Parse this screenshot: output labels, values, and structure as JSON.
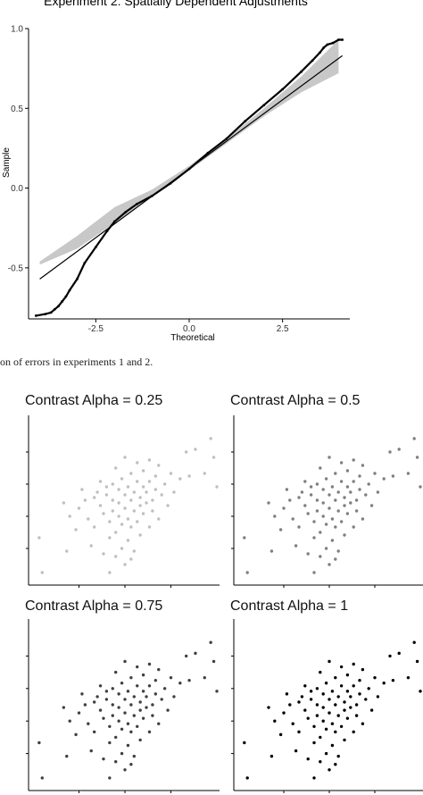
{
  "caption": "on of errors in experiments 1 and 2.",
  "chart_data": [
    {
      "type": "scatter",
      "title": "Experiment 2: Spatially Dependent Adjustments",
      "xlabel": "Theoretical",
      "ylabel": "Sample",
      "xlim": [
        -4.3,
        4.3
      ],
      "ylim": [
        -0.82,
        1.0
      ],
      "xticks": [
        -2.5,
        0.0,
        2.5
      ],
      "xtick_labels": [
        "-2.5",
        "0.0",
        "2.5"
      ],
      "yticks": [
        -0.5,
        0.0,
        0.5,
        1.0
      ],
      "ytick_labels": [
        "-0.5",
        "0.0",
        "0.5",
        "1.0"
      ],
      "grid": false,
      "points": [
        {
          "x": -4.1,
          "y": -0.8
        },
        {
          "x": -3.85,
          "y": -0.79
        },
        {
          "x": -3.7,
          "y": -0.78
        },
        {
          "x": -3.6,
          "y": -0.76
        },
        {
          "x": -3.5,
          "y": -0.74
        },
        {
          "x": -3.4,
          "y": -0.71
        },
        {
          "x": -3.3,
          "y": -0.68
        },
        {
          "x": -3.2,
          "y": -0.64
        },
        {
          "x": -3.0,
          "y": -0.57
        },
        {
          "x": -2.8,
          "y": -0.47
        },
        {
          "x": -2.5,
          "y": -0.37
        },
        {
          "x": -2.2,
          "y": -0.27
        },
        {
          "x": -2.0,
          "y": -0.21
        },
        {
          "x": -1.7,
          "y": -0.15
        },
        {
          "x": -1.4,
          "y": -0.1
        },
        {
          "x": -1.0,
          "y": -0.05
        },
        {
          "x": -0.5,
          "y": 0.03
        },
        {
          "x": 0.0,
          "y": 0.12
        },
        {
          "x": 0.5,
          "y": 0.22
        },
        {
          "x": 1.0,
          "y": 0.31
        },
        {
          "x": 1.5,
          "y": 0.42
        },
        {
          "x": 2.0,
          "y": 0.52
        },
        {
          "x": 2.5,
          "y": 0.62
        },
        {
          "x": 3.0,
          "y": 0.73
        },
        {
          "x": 3.3,
          "y": 0.8
        },
        {
          "x": 3.5,
          "y": 0.85
        },
        {
          "x": 3.6,
          "y": 0.88
        },
        {
          "x": 3.7,
          "y": 0.9
        },
        {
          "x": 3.85,
          "y": 0.91
        },
        {
          "x": 4.0,
          "y": 0.93
        },
        {
          "x": 4.1,
          "y": 0.93
        }
      ],
      "reference_line": {
        "x": [
          -4.0,
          4.1
        ],
        "y": [
          -0.57,
          0.83
        ]
      },
      "confidence_band": {
        "x": [
          -4.0,
          -3.0,
          -2.0,
          -1.0,
          0.0,
          1.0,
          2.0,
          3.0,
          4.0
        ],
        "lower": [
          -0.48,
          -0.38,
          -0.22,
          -0.05,
          0.11,
          0.28,
          0.45,
          0.6,
          0.72
        ],
        "upper": [
          -0.46,
          -0.3,
          -0.12,
          -0.01,
          0.14,
          0.31,
          0.5,
          0.7,
          0.93
        ]
      }
    },
    {
      "type": "scatter",
      "panels": [
        {
          "title": "Contrast Alpha = 0.25",
          "alpha": 0.25
        },
        {
          "title": "Contrast Alpha = 0.5",
          "alpha": 0.5
        },
        {
          "title": "Contrast Alpha = 0.75",
          "alpha": 0.75
        },
        {
          "title": "Contrast Alpha = 1",
          "alpha": 1
        }
      ],
      "xlim": [
        0,
        6
      ],
      "ylim": [
        0,
        6
      ],
      "point_color": "#000000",
      "points": [
        {
          "x": 0.2,
          "y": 1.6
        },
        {
          "x": 0.3,
          "y": 0.3
        },
        {
          "x": 1.1,
          "y": 1.1
        },
        {
          "x": 1.0,
          "y": 2.9
        },
        {
          "x": 1.2,
          "y": 2.4
        },
        {
          "x": 1.4,
          "y": 1.9
        },
        {
          "x": 1.5,
          "y": 2.7
        },
        {
          "x": 1.6,
          "y": 3.4
        },
        {
          "x": 1.7,
          "y": 3.0
        },
        {
          "x": 1.8,
          "y": 2.3
        },
        {
          "x": 1.9,
          "y": 1.3
        },
        {
          "x": 2.0,
          "y": 2.0
        },
        {
          "x": 2.0,
          "y": 3.1
        },
        {
          "x": 2.1,
          "y": 3.3
        },
        {
          "x": 2.2,
          "y": 3.7
        },
        {
          "x": 2.2,
          "y": 2.8
        },
        {
          "x": 2.3,
          "y": 1.0
        },
        {
          "x": 2.3,
          "y": 2.5
        },
        {
          "x": 2.4,
          "y": 3.2
        },
        {
          "x": 2.4,
          "y": 3.5
        },
        {
          "x": 2.5,
          "y": 0.3
        },
        {
          "x": 2.5,
          "y": 1.6
        },
        {
          "x": 2.5,
          "y": 2.2
        },
        {
          "x": 2.6,
          "y": 2.6
        },
        {
          "x": 2.6,
          "y": 3.0
        },
        {
          "x": 2.6,
          "y": 3.6
        },
        {
          "x": 2.7,
          "y": 0.9
        },
        {
          "x": 2.7,
          "y": 1.8
        },
        {
          "x": 2.7,
          "y": 4.2
        },
        {
          "x": 2.8,
          "y": 2.4
        },
        {
          "x": 2.8,
          "y": 2.9
        },
        {
          "x": 2.8,
          "y": 3.4
        },
        {
          "x": 2.9,
          "y": 1.2
        },
        {
          "x": 2.9,
          "y": 2.1
        },
        {
          "x": 2.9,
          "y": 3.8
        },
        {
          "x": 3.0,
          "y": 0.6
        },
        {
          "x": 3.0,
          "y": 2.7
        },
        {
          "x": 3.0,
          "y": 3.2
        },
        {
          "x": 3.0,
          "y": 4.6
        },
        {
          "x": 3.1,
          "y": 1.5
        },
        {
          "x": 3.1,
          "y": 2.3
        },
        {
          "x": 3.1,
          "y": 3.5
        },
        {
          "x": 3.2,
          "y": 0.8
        },
        {
          "x": 3.2,
          "y": 2.0
        },
        {
          "x": 3.2,
          "y": 3.0
        },
        {
          "x": 3.2,
          "y": 4.0
        },
        {
          "x": 3.3,
          "y": 2.6
        },
        {
          "x": 3.3,
          "y": 3.3
        },
        {
          "x": 3.3,
          "y": 1.1
        },
        {
          "x": 3.4,
          "y": 2.2
        },
        {
          "x": 3.4,
          "y": 3.7
        },
        {
          "x": 3.4,
          "y": 4.4
        },
        {
          "x": 3.5,
          "y": 2.8
        },
        {
          "x": 3.5,
          "y": 3.1
        },
        {
          "x": 3.5,
          "y": 1.7
        },
        {
          "x": 3.6,
          "y": 2.5
        },
        {
          "x": 3.6,
          "y": 3.5
        },
        {
          "x": 3.6,
          "y": 4.1
        },
        {
          "x": 3.7,
          "y": 2.9
        },
        {
          "x": 3.7,
          "y": 3.3
        },
        {
          "x": 3.8,
          "y": 2.0
        },
        {
          "x": 3.8,
          "y": 3.7
        },
        {
          "x": 3.8,
          "y": 4.5
        },
        {
          "x": 3.9,
          "y": 3.0
        },
        {
          "x": 3.9,
          "y": 2.6
        },
        {
          "x": 4.0,
          "y": 3.4
        },
        {
          "x": 4.0,
          "y": 3.9
        },
        {
          "x": 4.1,
          "y": 2.3
        },
        {
          "x": 4.1,
          "y": 4.3
        },
        {
          "x": 4.2,
          "y": 3.2
        },
        {
          "x": 4.3,
          "y": 3.6
        },
        {
          "x": 4.4,
          "y": 2.8
        },
        {
          "x": 4.5,
          "y": 4.0
        },
        {
          "x": 4.6,
          "y": 3.3
        },
        {
          "x": 4.8,
          "y": 3.8
        },
        {
          "x": 5.0,
          "y": 4.8
        },
        {
          "x": 5.1,
          "y": 3.9
        },
        {
          "x": 5.3,
          "y": 4.9
        },
        {
          "x": 5.6,
          "y": 4.0
        },
        {
          "x": 5.8,
          "y": 5.3
        },
        {
          "x": 5.9,
          "y": 4.6
        },
        {
          "x": 6.0,
          "y": 3.5
        }
      ]
    }
  ]
}
